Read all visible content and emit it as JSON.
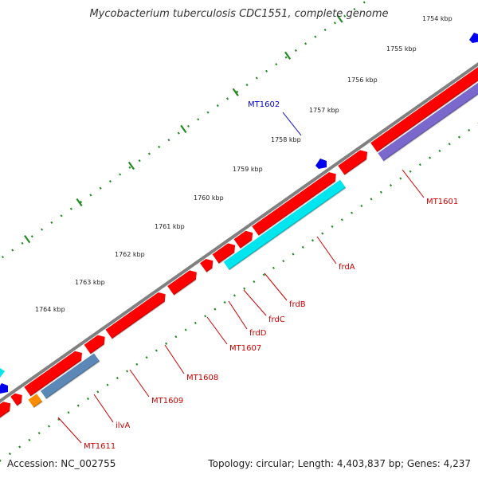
{
  "title": "Mycobacterium tuberculosis CDC1551, complete genome",
  "footer": {
    "accession": "Accession: NC_002755",
    "summary": "Topology: circular; Length: 4,403,837 bp; Genes: 4,237"
  },
  "colors": {
    "cds": "#ff0000",
    "cds_shade": "#a80000",
    "frdA": "#00e5ee",
    "MT1601_other": "#7b68cc",
    "ilvA": "#5b88b6",
    "MT1611_other": "#ff8c00",
    "small_feature": "#0000ee",
    "backbone": "#808080",
    "tick": "#228b22",
    "label_red": "#cc0000",
    "label_blue": "#0000cc"
  },
  "ruler_labels": [
    "1754 kbp",
    "1755 kbp",
    "1756 kbp",
    "1757 kbp",
    "1758 kbp",
    "1759 kbp",
    "1760 kbp",
    "1761 kbp",
    "1762 kbp",
    "1763 kbp",
    "1764 kbp"
  ],
  "gene_labels": [
    "MT1602",
    "MT1601",
    "frdA",
    "frdB",
    "frdC",
    "frdD",
    "MT1607",
    "MT1608",
    "MT1609",
    "ilvA",
    "MT1611"
  ]
}
